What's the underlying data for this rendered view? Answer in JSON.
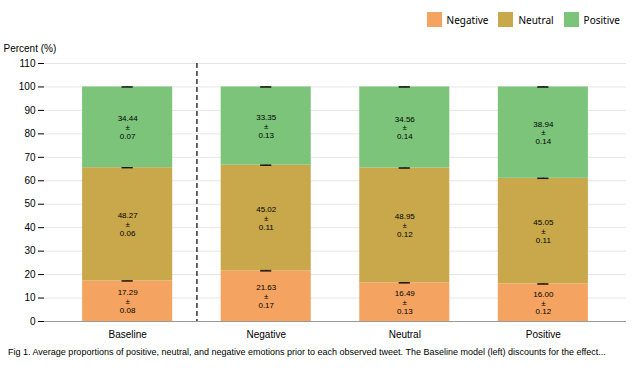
{
  "chart_data": {
    "type": "bar",
    "stacked": true,
    "categories": [
      "Baseline",
      "Negative",
      "Neutral",
      "Positive"
    ],
    "series": [
      {
        "name": "Negative",
        "color": "#F4A460",
        "values": [
          17.29,
          21.63,
          16.49,
          16.0
        ],
        "errors": [
          0.08,
          0.17,
          0.13,
          0.12
        ],
        "value_labels": [
          "17.29\n±\n0.08",
          "21.63\n±\n0.17",
          "16.49\n±\n0.13",
          "16.00\n±\n0.12"
        ]
      },
      {
        "name": "Neutral",
        "color": "#C8A84B",
        "values": [
          48.27,
          45.02,
          48.95,
          45.05
        ],
        "errors": [
          0.06,
          0.11,
          0.12,
          0.11
        ],
        "value_labels": [
          "48.27\n±\n0.06",
          "45.02\n±\n0.11",
          "48.95\n±\n0.12",
          "45.05\n±\n0.11"
        ]
      },
      {
        "name": "Positive",
        "color": "#7CC47A",
        "values": [
          34.44,
          33.35,
          34.56,
          38.94
        ],
        "errors": [
          0.07,
          0.13,
          0.14,
          0.14
        ],
        "value_labels": [
          "34.44\n±\n0.07",
          "33.35\n±\n0.13",
          "34.56\n±\n0.14",
          "38.94\n±\n0.14"
        ]
      }
    ],
    "ylabel": "Percent (%)",
    "ylim": [
      0,
      110
    ],
    "yticks": [
      0,
      10,
      20,
      30,
      40,
      50,
      60,
      70,
      80,
      90,
      100,
      110
    ],
    "grid": true,
    "legend": "upper right",
    "data_labels": true,
    "caption": "Fig 1.  Average proportions of positive, neutral, and negative emotions prior to each observed tweet. The Baseline model (left) discounts for the effect..."
  }
}
